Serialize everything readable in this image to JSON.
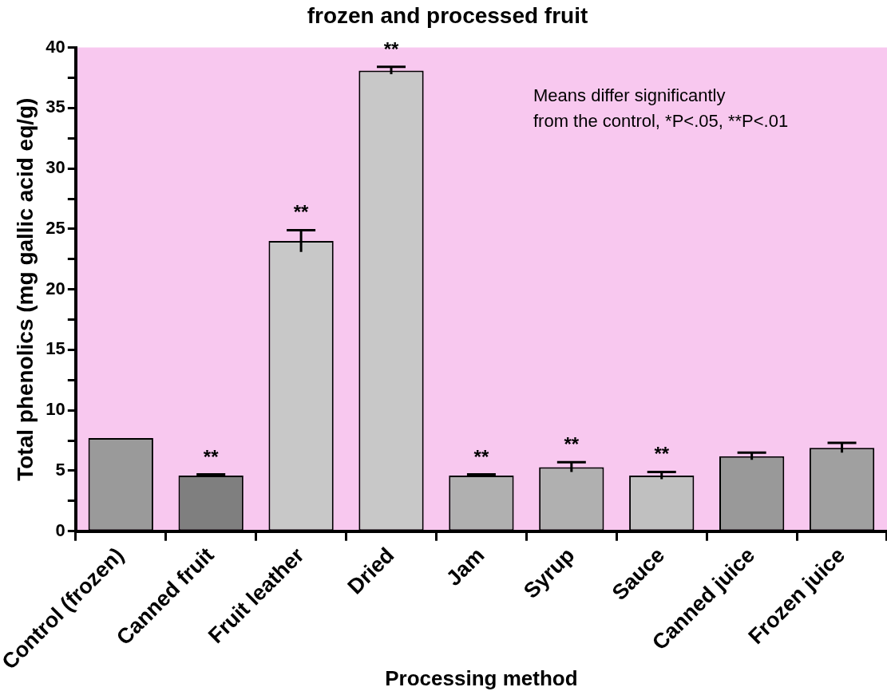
{
  "chart_data": {
    "type": "bar",
    "title": "frozen and processed fruit",
    "xlabel": "Processing method",
    "ylabel": "Total phenolics (mg gallic acid eq/g)",
    "categories": [
      "Control (frozen)",
      "Canned fruit",
      "Fruit leather",
      "Dried",
      "Jam",
      "Syrup",
      "Sauce",
      "Canned juice",
      "Frozen juice"
    ],
    "values": [
      7.7,
      4.6,
      24.0,
      38.1,
      4.6,
      5.3,
      4.6,
      6.2,
      6.9
    ],
    "errors": [
      null,
      0.1,
      0.9,
      0.3,
      0.1,
      0.4,
      0.3,
      0.3,
      0.4
    ],
    "colors": [
      "#9a9a9a",
      "#7f7f7f",
      "#c8c8c8",
      "#c8c8c8",
      "#b0b0b0",
      "#b0b0b0",
      "#c0c0c0",
      "#999999",
      "#a0a0a0"
    ],
    "ylim": [
      0,
      40
    ],
    "yticks": [
      0,
      {
        "value": 2.5,
        "label": null
      },
      5,
      {
        "value": 7.5,
        "label": null
      },
      10,
      {
        "value": 12.5,
        "label": null
      },
      15,
      {
        "value": 17.5,
        "label": null
      },
      20,
      {
        "value": 22.5,
        "label": null
      },
      25,
      {
        "value": 27.5,
        "label": null
      },
      30,
      {
        "value": 32.5,
        "label": null
      },
      35,
      {
        "value": 37.5,
        "label": null
      },
      40
    ],
    "grid": false,
    "legend": false,
    "value_labels": [
      null,
      "**",
      "**",
      "**",
      "**",
      "**",
      "**",
      null,
      null
    ],
    "annotations": [
      "Means differ significantly\nfrom the control, *P<.05, **P<.01"
    ]
  }
}
